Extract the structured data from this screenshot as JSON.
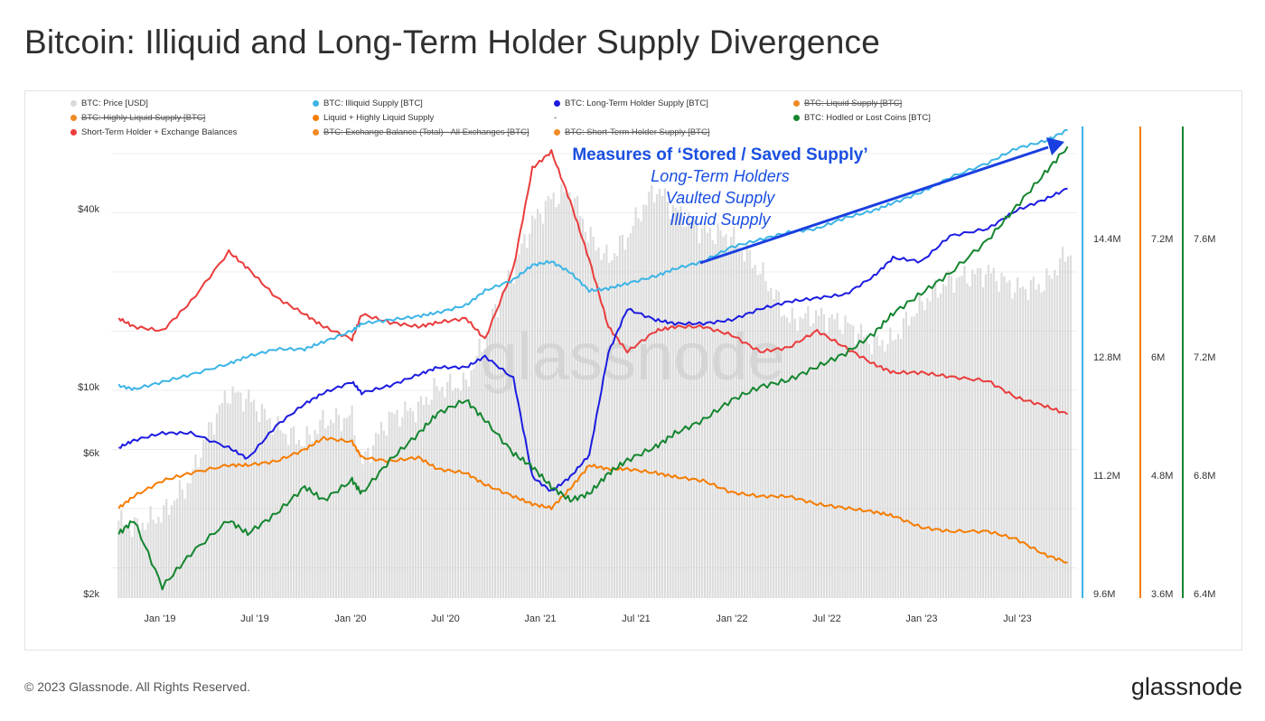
{
  "title": "Bitcoin: Illiquid and Long-Term Holder Supply Divergence",
  "footer": "© 2023 Glassnode. All Rights Reserved.",
  "brand": "glassnode",
  "watermark": "glassnode",
  "legend": [
    {
      "label": "BTC: Price [USD]",
      "color": "#d9d9d9",
      "active": true
    },
    {
      "label": "BTC: Illiquid Supply [BTC]",
      "color": "#3cb4e6",
      "active": true
    },
    {
      "label": "BTC: Long-Term Holder Supply [BTC]",
      "color": "#1c1ce0",
      "active": true
    },
    {
      "label": "BTC: Liquid Supply [BTC]",
      "color": "#f08a24",
      "active": false
    },
    {
      "label": "BTC: Highly Liquid Supply [BTC]",
      "color": "#f08a24",
      "active": false
    },
    {
      "label": "Liquid + Highly Liquid Supply",
      "color": "#f57c00",
      "active": true
    },
    {
      "label": "-",
      "color": "",
      "active": true
    },
    {
      "label": "BTC: Hodled or Lost Coins [BTC]",
      "color": "#14852f",
      "active": true
    },
    {
      "label": "Short-Term Holder + Exchange Balances",
      "color": "#ea3c3c",
      "active": true
    },
    {
      "label": "BTC: Exchange Balance (Total) - All Exchanges [BTC]",
      "color": "#f08a24",
      "active": false
    },
    {
      "label": "BTC: Short-Term Holder Supply [BTC]",
      "color": "#f08a24",
      "active": false
    }
  ],
  "annotation": {
    "heading": "Measures of ‘Stored / Saved Supply’",
    "lines": [
      "Long-Term Holders",
      "Vaulted Supply",
      "Illiquid Supply"
    ],
    "color": "#1a4fe0"
  },
  "colors": {
    "price": "#d0d0d0",
    "illiquid": "#3cb4e6",
    "lth": "#1c1ce0",
    "liquid": "#f57c00",
    "hodled": "#14852f",
    "sth": "#ea3c3c",
    "grid": "#ececec"
  },
  "chart_data": {
    "type": "line",
    "x_ticks": [
      "Jan '19",
      "Jul '19",
      "Jan '20",
      "Jul '20",
      "Jan '21",
      "Jul '21",
      "Jan '22",
      "Jul '22",
      "Jan '23",
      "Jul '23"
    ],
    "price_axis": {
      "labels": [
        "$2k",
        "$6k",
        "$10k",
        "$40k"
      ],
      "values": [
        2000,
        6000,
        10000,
        40000
      ],
      "scale": "log"
    },
    "axis_illiquid": {
      "labels": [
        "9.6M",
        "11.2M",
        "12.8M",
        "14.4M"
      ],
      "values": [
        9.6,
        11.2,
        12.8,
        14.4
      ],
      "unit": "M BTC"
    },
    "axis_liquid": {
      "labels": [
        "3.6M",
        "4.8M",
        "6M",
        "7.2M"
      ],
      "values": [
        3.6,
        4.8,
        6.0,
        7.2
      ],
      "unit": "M BTC"
    },
    "axis_hodled": {
      "labels": [
        "6.4M",
        "6.8M",
        "7.2M",
        "7.6M"
      ],
      "values": [
        6.4,
        6.8,
        7.2,
        7.6
      ],
      "unit": "M BTC"
    },
    "t": [
      2018.92,
      2019.0,
      2019.15,
      2019.3,
      2019.5,
      2019.6,
      2019.75,
      2019.9,
      2020.0,
      2020.15,
      2020.2,
      2020.35,
      2020.5,
      2020.6,
      2020.75,
      2020.85,
      2021.0,
      2021.1,
      2021.2,
      2021.3,
      2021.4,
      2021.5,
      2021.6,
      2021.75,
      2021.85,
      2022.0,
      2022.15,
      2022.3,
      2022.45,
      2022.6,
      2022.75,
      2022.9,
      2023.0,
      2023.15,
      2023.3,
      2023.5,
      2023.65,
      2023.8,
      2023.92
    ],
    "series": [
      {
        "name": "BTC: Price [USD]",
        "key": "price",
        "values": [
          3800,
          3600,
          4000,
          5300,
          11000,
          10500,
          8200,
          7300,
          8700,
          9000,
          6000,
          9000,
          9700,
          11500,
          11800,
          17000,
          30000,
          45000,
          55000,
          58000,
          40000,
          33000,
          40000,
          60000,
          50000,
          42000,
          40000,
          30000,
          20000,
          21000,
          19500,
          16500,
          17000,
          23000,
          28000,
          30000,
          26000,
          27000,
          35000
        ]
      },
      {
        "name": "BTC: Illiquid Supply [BTC]",
        "key": "illiquid",
        "values": [
          12.45,
          12.4,
          12.5,
          12.6,
          12.75,
          12.85,
          12.95,
          12.95,
          13.05,
          13.2,
          13.3,
          13.35,
          13.4,
          13.45,
          13.55,
          13.75,
          13.9,
          14.1,
          14.15,
          14.0,
          13.75,
          13.78,
          13.85,
          13.95,
          14.05,
          14.15,
          14.35,
          14.45,
          14.55,
          14.6,
          14.75,
          14.85,
          14.95,
          15.1,
          15.3,
          15.5,
          15.7,
          15.8,
          15.95
        ]
      },
      {
        "name": "BTC: Long-Term Holder Supply [BTC]",
        "key": "lth",
        "values": [
          11.6,
          11.7,
          11.8,
          11.8,
          11.6,
          11.45,
          11.9,
          12.2,
          12.35,
          12.5,
          12.35,
          12.45,
          12.6,
          12.7,
          12.7,
          12.85,
          12.55,
          11.2,
          11.0,
          11.2,
          11.5,
          12.9,
          13.5,
          13.35,
          13.3,
          13.3,
          13.35,
          13.5,
          13.6,
          13.65,
          13.7,
          13.95,
          14.2,
          14.15,
          14.5,
          14.6,
          14.85,
          15.0,
          15.15
        ]
      },
      {
        "name": "Liquid + Highly Liquid Supply",
        "key": "liquid",
        "values": [
          4.7,
          4.85,
          5.05,
          5.15,
          5.25,
          5.25,
          5.3,
          5.45,
          5.6,
          5.55,
          5.35,
          5.3,
          5.35,
          5.2,
          5.15,
          5.0,
          4.85,
          4.75,
          4.7,
          4.95,
          5.25,
          5.2,
          5.2,
          5.15,
          5.1,
          5.05,
          4.9,
          4.85,
          4.85,
          4.75,
          4.7,
          4.65,
          4.6,
          4.45,
          4.4,
          4.4,
          4.3,
          4.1,
          4.0
        ]
      },
      {
        "name": "BTC: Hodled or Lost Coins [BTC]",
        "key": "hodled",
        "values": [
          6.85,
          6.95,
          6.45,
          6.7,
          6.95,
          6.85,
          7.0,
          7.2,
          7.1,
          7.25,
          7.15,
          7.4,
          7.6,
          7.75,
          7.85,
          7.7,
          7.45,
          7.35,
          7.2,
          7.1,
          7.15,
          7.3,
          7.4,
          7.5,
          7.6,
          7.7,
          7.85,
          7.95,
          8.0,
          8.1,
          8.2,
          8.35,
          8.5,
          8.65,
          8.8,
          9.05,
          9.3,
          9.55,
          9.75
        ]
      },
      {
        "name": "Short-Term Holder + Exchange Balances",
        "key": "sth",
        "values": [
          7.3,
          7.2,
          7.15,
          7.5,
          8.1,
          7.9,
          7.55,
          7.35,
          7.2,
          7.05,
          7.35,
          7.25,
          7.2,
          7.25,
          7.3,
          7.05,
          7.9,
          9.1,
          9.3,
          8.7,
          8.0,
          7.2,
          6.9,
          7.15,
          7.2,
          7.2,
          7.1,
          6.9,
          6.95,
          7.15,
          6.95,
          6.75,
          6.65,
          6.65,
          6.6,
          6.55,
          6.35,
          6.25,
          6.15
        ]
      }
    ]
  }
}
